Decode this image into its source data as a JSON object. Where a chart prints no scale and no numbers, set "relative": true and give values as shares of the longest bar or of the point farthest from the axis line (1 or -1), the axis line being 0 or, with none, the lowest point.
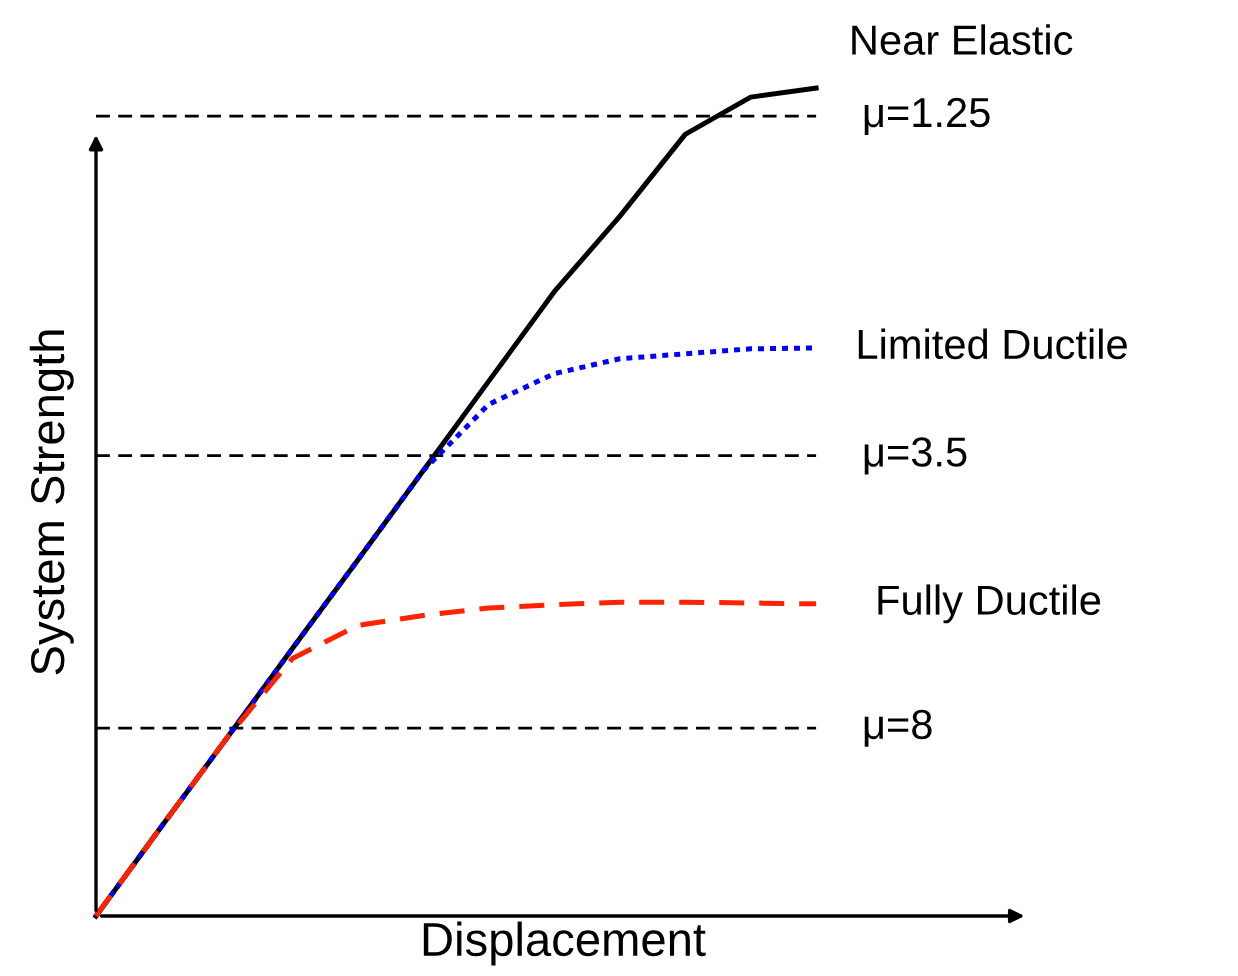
{
  "chart_data": {
    "type": "line",
    "relative": true,
    "xlabel": "Displacement",
    "ylabel": "System Strength",
    "tick_labels": false,
    "legend": false,
    "marker": "none",
    "categories": [
      null,
      null,
      null,
      null,
      null,
      null,
      null,
      null,
      null,
      null,
      null,
      null
    ],
    "series": [
      {
        "name": "Near Elastic",
        "color": "#000000",
        "line_style": "solid",
        "values": [
          0,
          0.108,
          0.215,
          0.323,
          0.43,
          0.538,
          0.646,
          0.754,
          0.845,
          0.944,
          0.989,
          1.0
        ]
      },
      {
        "name": "Limited Ductile",
        "color": "#0000ff",
        "line_style": "dotted",
        "values": [
          0,
          0.108,
          0.215,
          0.323,
          0.43,
          0.538,
          0.618,
          0.655,
          0.673,
          0.679,
          0.685,
          0.686
        ]
      },
      {
        "name": "Fully Ductile",
        "color": "#ff2200",
        "line_style": "dashed",
        "values": [
          0,
          0.108,
          0.215,
          0.311,
          0.351,
          0.363,
          0.372,
          0.376,
          0.379,
          0.379,
          0.378,
          0.377
        ]
      }
    ],
    "ref_lines": [
      {
        "axis": "y",
        "value": 0.966,
        "color": "#000000",
        "line_style": "dashed"
      },
      {
        "axis": "y",
        "value": 0.556,
        "color": "#000000",
        "line_style": "dashed"
      },
      {
        "axis": "y",
        "value": 0.227,
        "color": "#000000",
        "line_style": "dashed"
      }
    ],
    "annotations": [
      "μ=1.25",
      "μ=3.5",
      "μ=8"
    ]
  }
}
